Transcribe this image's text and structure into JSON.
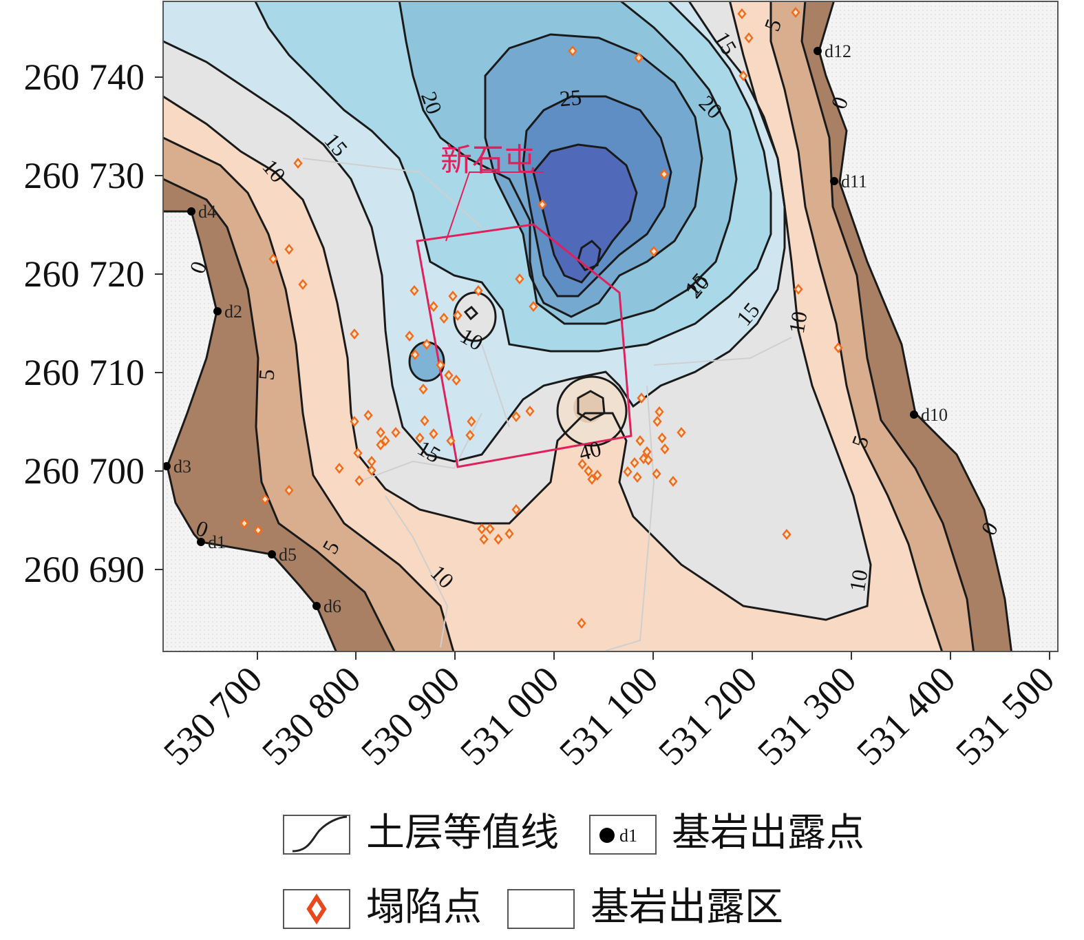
{
  "map": {
    "site_label": "新石屯",
    "x_axis": {
      "ticks": [
        "530 700",
        "530 800",
        "530 900",
        "531 000",
        "531 100",
        "531 200",
        "531 300",
        "531 400",
        "531 500"
      ]
    },
    "y_axis": {
      "ticks": [
        "260 740",
        "260 730",
        "260 720",
        "260 710",
        "260 700",
        "260 690"
      ]
    },
    "contour_labels": [
      "0",
      "0",
      "0",
      "0",
      "5",
      "5",
      "5",
      "5",
      "10",
      "10",
      "10",
      "10",
      "10",
      "15",
      "15",
      "15",
      "15",
      "15",
      "20",
      "20",
      "20",
      "25",
      "40"
    ],
    "contour_levels": [
      0,
      5,
      10,
      15,
      20,
      25,
      40
    ],
    "bedrock_points": [
      "d1",
      "d2",
      "d3",
      "d4",
      "d5",
      "d6",
      "d10",
      "d11",
      "d12"
    ],
    "colors": {
      "bedrock_area": "#f2f2f2",
      "band_0_5": "#a98063",
      "band_5_10": "#d9ae8f",
      "band_10_15": "#f7d9c4",
      "band_15_20": "#e4e4e4",
      "band_20_25": "#cfe6f0",
      "band_25_30": "#8dd0e1",
      "band_30_35": "#7fb3d5",
      "band_35_40": "#5f99c8",
      "band_40_plus": "#5069b8",
      "contour_line": "#1a1a1a",
      "site_boundary": "#e0205a",
      "collapse_point": "#f26b1d",
      "bedrock_point": "#000000"
    }
  },
  "legend": {
    "contour_line": "土层等值线",
    "bedrock_point_sample": "d1",
    "bedrock_point": "基岩出露点",
    "collapse_point": "塌陷点",
    "bedrock_area": "基岩出露区"
  }
}
